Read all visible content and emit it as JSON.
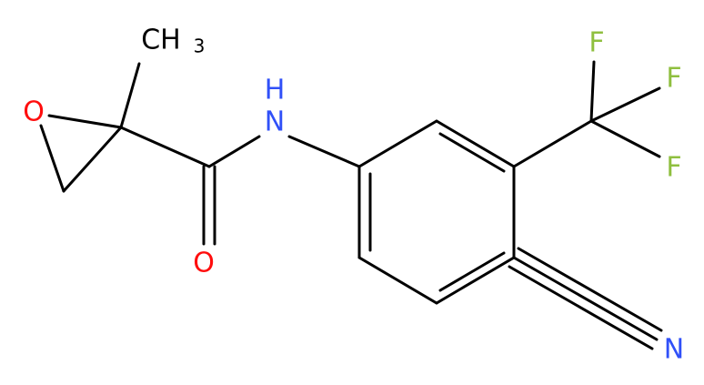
{
  "atoms": {
    "methyl": {
      "main": "CH",
      "sub": "3"
    },
    "epoxide_o": "O",
    "carbonyl_o": "O",
    "amide_n": "N",
    "amide_h": "H",
    "fluorines": [
      "F",
      "F",
      "F"
    ],
    "nitrile_n": "N"
  }
}
